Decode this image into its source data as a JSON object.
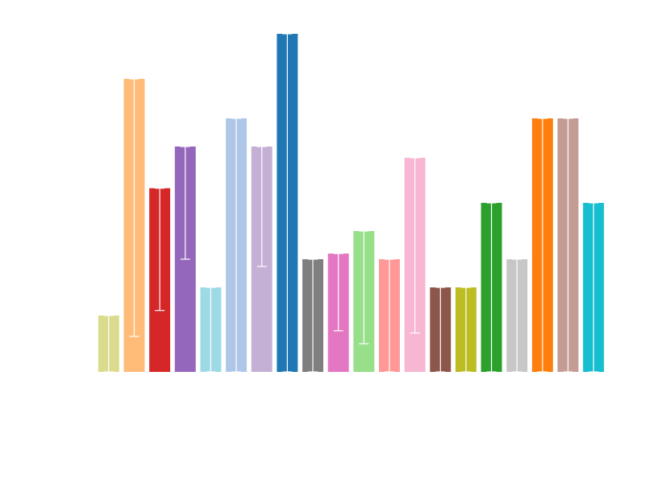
{
  "chart_data": {
    "type": "bar",
    "title": "",
    "xlabel": "",
    "ylabel": "",
    "ylim": [
      0,
      6.0
    ],
    "grid": false,
    "legend": "none",
    "bars": [
      {
        "value": 1.0,
        "err_low": 1.0,
        "color": "#dbdb8d"
      },
      {
        "value": 5.2,
        "err_low": 4.57,
        "color": "#ffbb78"
      },
      {
        "value": 3.26,
        "err_low": 2.17,
        "color": "#d62728"
      },
      {
        "value": 4.0,
        "err_low": 2.0,
        "color": "#9467bd"
      },
      {
        "value": 1.5,
        "err_low": 1.5,
        "color": "#9edae5"
      },
      {
        "value": 4.5,
        "err_low": 4.5,
        "color": "#aec7e8"
      },
      {
        "value": 4.0,
        "err_low": 2.13,
        "color": "#c5b0d5"
      },
      {
        "value": 6.0,
        "err_low": 6.0,
        "color": "#1f77b4"
      },
      {
        "value": 2.0,
        "err_low": 2.0,
        "color": "#7f7f7f"
      },
      {
        "value": 2.1,
        "err_low": 1.37,
        "color": "#e377c2"
      },
      {
        "value": 2.5,
        "err_low": 2.0,
        "color": "#98df8a"
      },
      {
        "value": 2.0,
        "err_low": 2.0,
        "color": "#ff9896"
      },
      {
        "value": 3.8,
        "err_low": 3.11,
        "color": "#f7b6d2"
      },
      {
        "value": 1.5,
        "err_low": 1.5,
        "color": "#8c564b"
      },
      {
        "value": 1.5,
        "err_low": 1.5,
        "color": "#bcbd22"
      },
      {
        "value": 3.0,
        "err_low": 3.0,
        "color": "#2ca02c"
      },
      {
        "value": 2.0,
        "err_low": 2.0,
        "color": "#c7c7c7"
      },
      {
        "value": 4.5,
        "err_low": 4.5,
        "color": "#ff7f0e"
      },
      {
        "value": 4.5,
        "err_low": 4.5,
        "color": "#c49c94"
      },
      {
        "value": 3.0,
        "err_low": 3.0,
        "color": "#17becf"
      }
    ]
  }
}
